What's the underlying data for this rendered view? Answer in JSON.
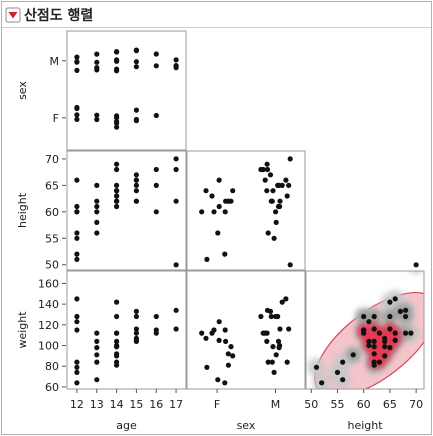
{
  "panel": {
    "title": "산점도 행렬",
    "menu_icon": "red-triangle-down-icon"
  },
  "colors": {
    "points": "#111111",
    "outer_ellipse": "#f4c4cb",
    "outer_ellipse_stroke": "#d4485c",
    "density_light": "#c8c8c8",
    "density_mid": "#9a9a9a",
    "density_core": "#e8364f",
    "header_border": "#b0b0b0"
  },
  "chart_data": {
    "type": "scatter",
    "variables": [
      "age",
      "sex",
      "height",
      "weight"
    ],
    "variable_labels": {
      "sex": "sex",
      "height": "height",
      "weight": "weight",
      "age": "age"
    },
    "matrix_rows": [
      "sex",
      "height",
      "weight"
    ],
    "matrix_cols": [
      "age",
      "sex",
      "height"
    ],
    "axes": {
      "age": {
        "ticks": [
          12,
          13,
          14,
          15,
          16,
          17
        ],
        "lim": [
          11.5,
          17.5
        ]
      },
      "sex": {
        "ticks": [
          "F",
          "M"
        ]
      },
      "height": {
        "ticks": [
          50,
          55,
          60,
          65,
          70
        ],
        "lim": [
          49,
          71.5
        ]
      },
      "weight": {
        "ticks": [
          60,
          80,
          100,
          120,
          140,
          160
        ],
        "lim": [
          58,
          172
        ]
      }
    },
    "density_plot": "height-weight",
    "observations": [
      {
        "age": 12,
        "sex": "F",
        "height": 51,
        "weight": 79
      },
      {
        "age": 12,
        "sex": "F",
        "height": 52,
        "weight": 64
      },
      {
        "age": 12,
        "sex": "F",
        "height": 61,
        "weight": 123
      },
      {
        "age": 12,
        "sex": "M",
        "height": 55,
        "weight": 74
      },
      {
        "age": 12,
        "sex": "M",
        "height": 56,
        "weight": 84
      },
      {
        "age": 12,
        "sex": "M",
        "height": 66,
        "weight": 145
      },
      {
        "age": 12,
        "sex": "F",
        "height": 60,
        "weight": 115
      },
      {
        "age": 12,
        "sex": "M",
        "height": 60,
        "weight": 128
      },
      {
        "age": 13,
        "sex": "F",
        "height": 56,
        "weight": 67
      },
      {
        "age": 13,
        "sex": "M",
        "height": 58,
        "weight": 91
      },
      {
        "age": 13,
        "sex": "F",
        "height": 60,
        "weight": 112
      },
      {
        "age": 13,
        "sex": "M",
        "height": 61,
        "weight": 104
      },
      {
        "age": 13,
        "sex": "M",
        "height": 65,
        "weight": 98
      },
      {
        "age": 13,
        "sex": "M",
        "height": 62,
        "weight": 84
      },
      {
        "age": 14,
        "sex": "F",
        "height": 62,
        "weight": 92
      },
      {
        "age": 14,
        "sex": "F",
        "height": 63,
        "weight": 112
      },
      {
        "age": 14,
        "sex": "M",
        "height": 64,
        "weight": 99
      },
      {
        "age": 14,
        "sex": "M",
        "height": 69,
        "weight": 112
      },
      {
        "age": 14,
        "sex": "F",
        "height": 64,
        "weight": 90
      },
      {
        "age": 14,
        "sex": "M",
        "height": 65,
        "weight": 142
      },
      {
        "age": 14,
        "sex": "M",
        "height": 63,
        "weight": 84
      },
      {
        "age": 14,
        "sex": "F",
        "height": 62,
        "weight": 81
      },
      {
        "age": 14,
        "sex": "M",
        "height": 68,
        "weight": 128
      },
      {
        "age": 14,
        "sex": "M",
        "height": 61,
        "weight": 100
      },
      {
        "age": 14,
        "sex": "F",
        "height": 62,
        "weight": 99
      },
      {
        "age": 14,
        "sex": "M",
        "height": 64,
        "weight": 104
      },
      {
        "age": 15,
        "sex": "F",
        "height": 62,
        "weight": 104
      },
      {
        "age": 15,
        "sex": "F",
        "height": 64,
        "weight": 107
      },
      {
        "age": 15,
        "sex": "M",
        "height": 65,
        "weight": 116
      },
      {
        "age": 15,
        "sex": "M",
        "height": 66,
        "weight": 112
      },
      {
        "age": 15,
        "sex": "M",
        "height": 67,
        "weight": 133
      },
      {
        "age": 15,
        "sex": "F",
        "height": 66,
        "weight": 105
      },
      {
        "age": 15,
        "sex": "M",
        "height": 62,
        "weight": 128
      },
      {
        "age": 16,
        "sex": "F",
        "height": 60,
        "weight": 115
      },
      {
        "age": 16,
        "sex": "M",
        "height": 65,
        "weight": 128
      },
      {
        "age": 16,
        "sex": "M",
        "height": 68,
        "weight": 112
      },
      {
        "age": 17,
        "sex": "M",
        "height": 62,
        "weight": 116
      },
      {
        "age": 17,
        "sex": "M",
        "height": 70,
        "weight": 178
      },
      {
        "age": 17,
        "sex": "M",
        "height": 68,
        "weight": 134
      }
    ]
  }
}
